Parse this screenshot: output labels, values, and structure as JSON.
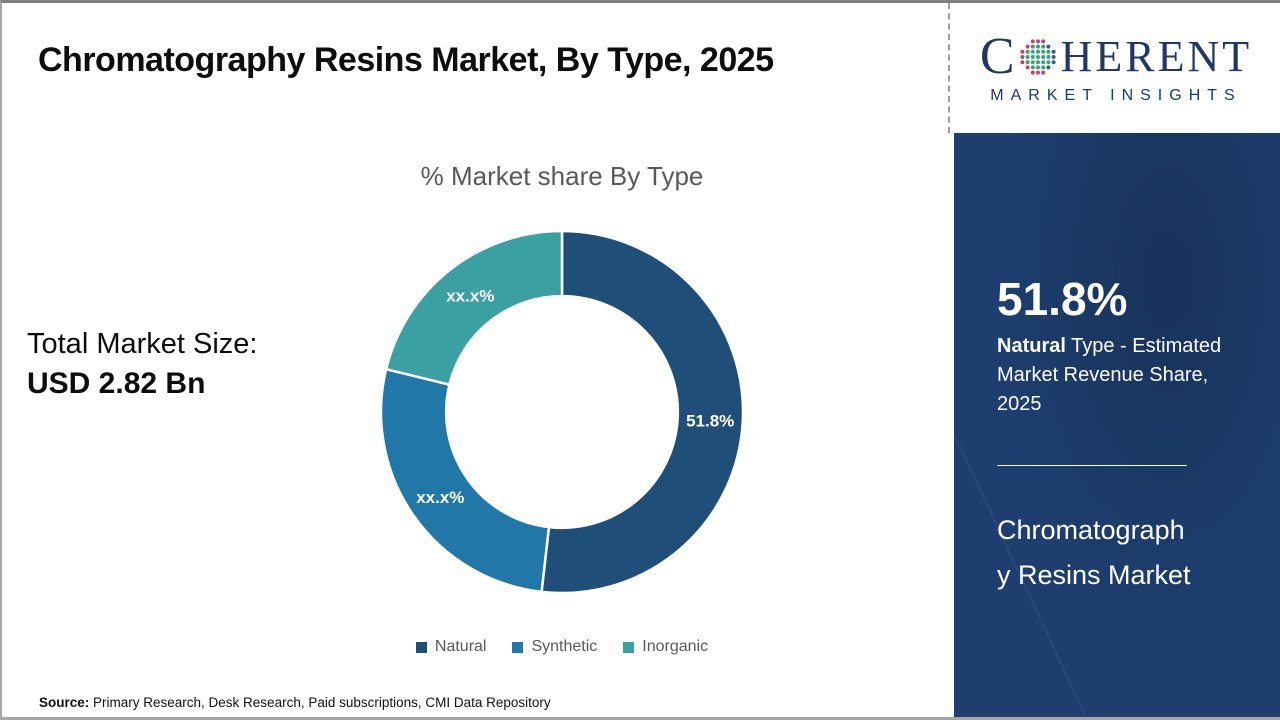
{
  "header": {
    "title": "Chromatography Resins Market, By Type, 2025"
  },
  "logo": {
    "prefix": "C",
    "suffix": "HERENT",
    "subtitle": "MARKET INSIGHTS",
    "text_color": "#1f3864",
    "globe_colors": {
      "outer_pink": "#c2427e",
      "outer_blue": "#2b5ea7",
      "teal": "#2ba3a8",
      "green": "#41a649"
    }
  },
  "left_panel": {
    "total_label": "Total Market Size:",
    "total_value": "USD 2.82 Bn"
  },
  "chart_data": {
    "type": "pie",
    "subtype": "donut",
    "title": "% Market share By Type",
    "categories": [
      "Natural",
      "Synthetic",
      "Inorganic"
    ],
    "values": [
      51.8,
      27.0,
      21.2
    ],
    "display_labels": [
      "51.8%",
      "xx.x%",
      "xx.x%"
    ],
    "colors": [
      "#1f4e79",
      "#2077a8",
      "#3aa0a2"
    ],
    "label_color": "#ffffff",
    "separator_color": "#ffffff",
    "inner_radius_ratio": 0.64,
    "start_angle_deg": 0,
    "direction": "clockwise",
    "legend_position": "bottom"
  },
  "sidebar": {
    "background": "#1d3e6e",
    "stat_value": "51.8%",
    "stat_bold": "Natural",
    "stat_rest": " Type - Estimated Market Revenue Share, 2025",
    "market_name": "Chromatography Resins Market"
  },
  "footer": {
    "source_label": "Source:",
    "source_rest": " Primary Research, Desk Research, Paid subscriptions, CMI Data Repository"
  }
}
